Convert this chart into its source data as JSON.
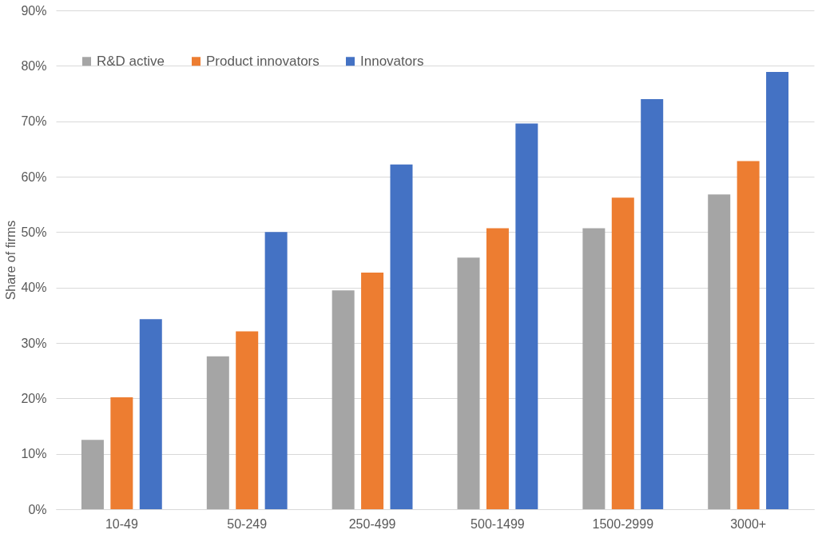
{
  "chart_data": {
    "type": "bar",
    "ylabel": "Share of firms",
    "categories": [
      "10-49",
      "50-249",
      "250-499",
      "500-1499",
      "1500-2999",
      "3000+"
    ],
    "series": [
      {
        "name": "R&D active",
        "color": "#a5a5a5",
        "values": [
          12.5,
          27.6,
          39.5,
          45.4,
          50.7,
          56.8
        ]
      },
      {
        "name": "Product innovators",
        "color": "#ed7d31",
        "values": [
          20.2,
          32.1,
          42.7,
          50.7,
          56.2,
          62.8
        ]
      },
      {
        "name": "Innovators",
        "color": "#4472c4",
        "values": [
          34.3,
          50.0,
          62.2,
          69.6,
          74.0,
          78.9
        ]
      }
    ],
    "ylim": [
      0,
      90
    ],
    "yticks": [
      {
        "value": 0,
        "label": "0%"
      },
      {
        "value": 10,
        "label": "10%"
      },
      {
        "value": 20,
        "label": "20%"
      },
      {
        "value": 30,
        "label": "30%"
      },
      {
        "value": 40,
        "label": "40%"
      },
      {
        "value": 50,
        "label": "50%"
      },
      {
        "value": 60,
        "label": "60%"
      },
      {
        "value": 70,
        "label": "70%"
      },
      {
        "value": 80,
        "label": "80%"
      },
      {
        "value": 90,
        "label": "90%"
      }
    ],
    "grid": "y",
    "legend": "top left"
  }
}
